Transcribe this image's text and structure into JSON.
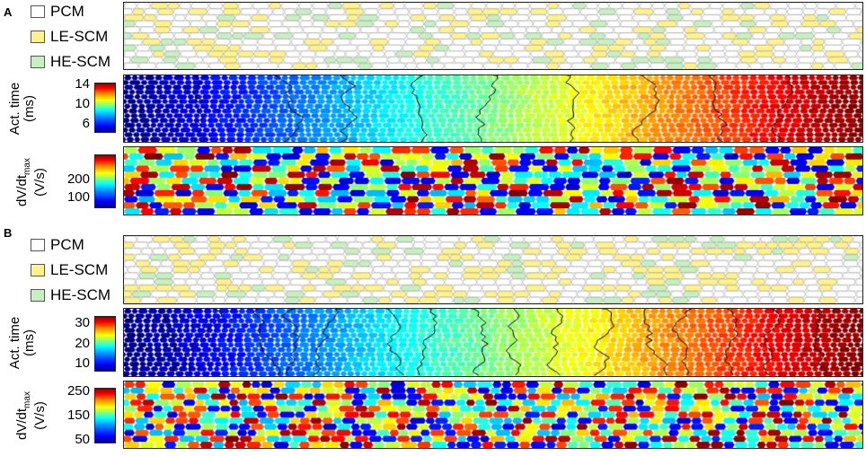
{
  "panels": [
    {
      "letter": "A",
      "legend": [
        {
          "label": "PCM",
          "color": "#ffffff"
        },
        {
          "label": "LE-SCM",
          "color": "#fff28a"
        },
        {
          "label": "HE-SCM",
          "color": "#c6f0c0"
        }
      ],
      "act_time": {
        "title_line1": "Act. time",
        "title_line2": "(ms)",
        "ticks": [
          "14",
          "10",
          "6"
        ]
      },
      "dvdt": {
        "title_main": "dV/dt",
        "title_sub": "max",
        "title_line2": "(V/s)",
        "ticks": [
          "200",
          "100"
        ]
      }
    },
    {
      "letter": "B",
      "legend": [
        {
          "label": "PCM",
          "color": "#ffffff"
        },
        {
          "label": "LE-SCM",
          "color": "#fff28a"
        },
        {
          "label": "HE-SCM",
          "color": "#c6f0c0"
        }
      ],
      "act_time": {
        "title_line1": "Act. time",
        "title_line2": "(ms)",
        "ticks": [
          "30",
          "20",
          "10"
        ]
      },
      "dvdt": {
        "title_main": "dV/dt",
        "title_sub": "max",
        "title_line2": "(V/s)",
        "ticks": [
          "250",
          "150",
          "50"
        ]
      }
    }
  ],
  "colors": {
    "pcm": "#ffffff",
    "le_scm": "#fff28a",
    "he_scm": "#c6f0c0",
    "isochrone": "#000000"
  }
}
